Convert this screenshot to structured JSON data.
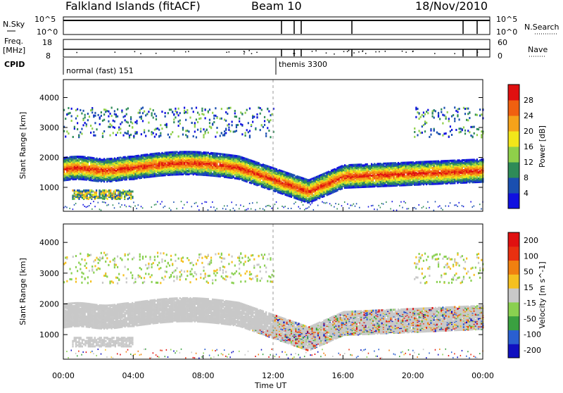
{
  "header": {
    "station": "Falkland Islands (fitACF)",
    "beam": "Beam 10",
    "date": "18/Nov/2010"
  },
  "strips": {
    "nsky_label": "N.Sky",
    "nsearch_label": "N.Search",
    "noise_ticks_left": [
      "10^5",
      "10^0"
    ],
    "noise_ticks_right": [
      "10^5",
      "10^0"
    ],
    "freq_label": "Freq.",
    "freq_unit": "[MHz]",
    "freq_ticks": [
      "18",
      "8"
    ],
    "nave_label": "Nave",
    "nave_ticks": [
      "60",
      "0"
    ],
    "cpid_label": "CPID",
    "cpid_modes": [
      {
        "name": "normal (fast) 151",
        "start_hour": 0
      },
      {
        "name": "themis 3300",
        "start_hour": 12.0
      }
    ]
  },
  "chart_data": [
    {
      "type": "heatmap",
      "ylabel": "Slant Range [km]",
      "xlabel": "Time UT",
      "x_ticks": [
        "00:00",
        "04:00",
        "08:00",
        "12:00",
        "16:00",
        "20:00",
        "00:00"
      ],
      "xlim_hours": [
        0,
        24
      ],
      "ylim_km": [
        200,
        4600
      ],
      "y_ticks": [
        1000,
        2000,
        3000,
        4000
      ],
      "colorbar_label": "Power [dB]",
      "colorbar_ticks": [
        4,
        8,
        12,
        16,
        20,
        24,
        28
      ],
      "colorbar_range": [
        0,
        30
      ],
      "colors": [
        "#1010e0",
        "#1a4fb0",
        "#2e8b57",
        "#8fd04a",
        "#f2e61a",
        "#f5a21a",
        "#f06010",
        "#e01010"
      ]
    },
    {
      "type": "heatmap",
      "ylabel": "Slant Range [km]",
      "xlabel": "Time UT",
      "x_ticks": [
        "00:00",
        "04:00",
        "08:00",
        "12:00",
        "16:00",
        "20:00",
        "00:00"
      ],
      "xlim_hours": [
        0,
        24
      ],
      "ylim_km": [
        200,
        4600
      ],
      "y_ticks": [
        1000,
        2000,
        3000,
        4000
      ],
      "colorbar_label": "Velocity [m s^-1]",
      "colorbar_ticks": [
        "200",
        "100",
        "50",
        "15",
        "-15",
        "-50",
        "-100",
        "-200"
      ],
      "colorbar_range": [
        -250,
        250
      ],
      "colors": [
        "#1010c0",
        "#2a5fd0",
        "#3aa040",
        "#8ad050",
        "#c8c8c8",
        "#f5c020",
        "#f08010",
        "#e83010",
        "#e01010"
      ],
      "ground_scatter_color": "#c0c0c0"
    }
  ]
}
